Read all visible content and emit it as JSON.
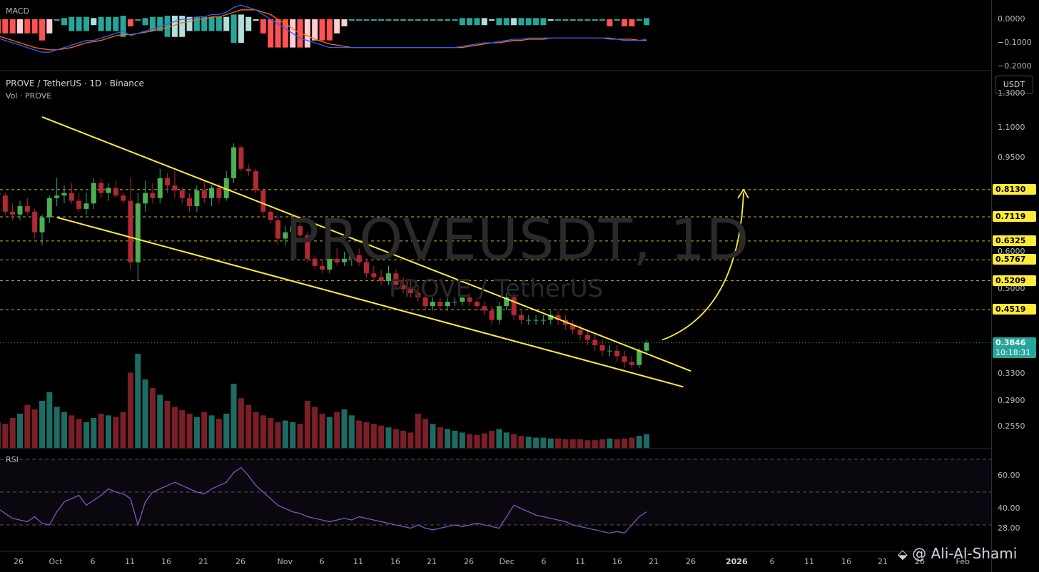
{
  "header": {
    "title": "PROVE / TetherUS · 1D · Binance",
    "vol_label": "Vol · PROVE",
    "watermark": "PROVEUSDT, 1D",
    "watermark_sub": "PROVE / TetherUS"
  },
  "panes": {
    "macd_label": "MACD",
    "rsi_label": "RSI"
  },
  "currency_button": "USDT",
  "author": "@ Ali-Al-Shami",
  "price_axis": {
    "ticks": [
      "1.3000",
      "1.1000",
      "0.9500",
      "0.6000",
      "0.5000",
      "0.3300",
      "0.2900",
      "0.2550"
    ],
    "highlighted_levels": [
      "0.8130",
      "0.7119",
      "0.6325",
      "0.5767",
      "0.5209",
      "0.4519"
    ],
    "current_price": "0.3846",
    "countdown": "10:18:31"
  },
  "macd_axis": {
    "ticks": [
      "0.0000",
      "−0.1000",
      "−0.2000"
    ]
  },
  "rsi_axis": {
    "ticks": [
      "60.00",
      "40.00",
      "28.00"
    ]
  },
  "time_axis": {
    "labels": [
      "26",
      "Oct",
      "6",
      "11",
      "16",
      "21",
      "26",
      "Nov",
      "6",
      "11",
      "16",
      "21",
      "26",
      "Dec",
      "6",
      "11",
      "16",
      "21",
      "26",
      "2026",
      "6",
      "11",
      "16",
      "21",
      "26",
      "Feb"
    ],
    "bold": [
      "2026"
    ]
  },
  "colors": {
    "up": "#26a69a",
    "down": "#b22833",
    "pattern": "#ffeb3b",
    "macd": "#2962ff",
    "signal": "#ff6d00",
    "rsi": "#7e57c2",
    "levels": "#ffeb3b",
    "current": "#26a69a"
  },
  "chart_data": [
    {
      "type": "candlestick",
      "title": "PROVE / TetherUS · 1D · Binance",
      "scale": "log",
      "ylim": [
        0.23,
        1.45
      ],
      "x": [
        "Sep 23",
        "Sep 24",
        "Sep 25",
        "Sep 26",
        "Sep 27",
        "Sep 28",
        "Sep 29",
        "Sep 30",
        "Oct 1",
        "Oct 2",
        "Oct 3",
        "Oct 4",
        "Oct 5",
        "Oct 6",
        "Oct 7",
        "Oct 8",
        "Oct 9",
        "Oct 10",
        "Oct 11",
        "Oct 12",
        "Oct 13",
        "Oct 14",
        "Oct 15",
        "Oct 16",
        "Oct 17",
        "Oct 18",
        "Oct 19",
        "Oct 20",
        "Oct 21",
        "Oct 22",
        "Oct 23",
        "Oct 24",
        "Oct 25",
        "Oct 26",
        "Oct 27",
        "Oct 28",
        "Oct 29",
        "Oct 30",
        "Oct 31",
        "Nov 1",
        "Nov 2",
        "Nov 3",
        "Nov 4",
        "Nov 5",
        "Nov 6",
        "Nov 7",
        "Nov 8",
        "Nov 9",
        "Nov 10",
        "Nov 11",
        "Nov 12",
        "Nov 13",
        "Nov 14",
        "Nov 15",
        "Nov 16",
        "Nov 17",
        "Nov 18",
        "Nov 19",
        "Nov 20",
        "Nov 21",
        "Nov 22",
        "Nov 23",
        "Nov 24",
        "Nov 25",
        "Nov 26",
        "Nov 27",
        "Nov 28",
        "Nov 29",
        "Nov 30",
        "Dec 1",
        "Dec 2",
        "Dec 3",
        "Dec 4",
        "Dec 5",
        "Dec 6",
        "Dec 7",
        "Dec 8",
        "Dec 9",
        "Dec 10",
        "Dec 11",
        "Dec 12",
        "Dec 13",
        "Dec 14",
        "Dec 15",
        "Dec 16",
        "Dec 17",
        "Dec 18",
        "Dec 19",
        "Dec 20"
      ],
      "ohlc": [
        [
          0.8,
          0.82,
          0.78,
          0.79
        ],
        [
          0.79,
          0.8,
          0.72,
          0.73
        ],
        [
          0.73,
          0.76,
          0.7,
          0.72
        ],
        [
          0.72,
          0.77,
          0.7,
          0.75
        ],
        [
          0.75,
          0.78,
          0.72,
          0.73
        ],
        [
          0.73,
          0.74,
          0.64,
          0.66
        ],
        [
          0.66,
          0.72,
          0.62,
          0.71
        ],
        [
          0.71,
          0.79,
          0.69,
          0.78
        ],
        [
          0.78,
          0.86,
          0.75,
          0.79
        ],
        [
          0.79,
          0.83,
          0.76,
          0.8
        ],
        [
          0.8,
          0.84,
          0.76,
          0.77
        ],
        [
          0.77,
          0.8,
          0.73,
          0.74
        ],
        [
          0.74,
          0.8,
          0.72,
          0.76
        ],
        [
          0.76,
          0.86,
          0.74,
          0.84
        ],
        [
          0.84,
          0.86,
          0.78,
          0.8
        ],
        [
          0.8,
          0.84,
          0.77,
          0.82
        ],
        [
          0.82,
          0.85,
          0.78,
          0.79
        ],
        [
          0.79,
          0.8,
          0.76,
          0.77
        ],
        [
          0.77,
          0.86,
          0.55,
          0.57
        ],
        [
          0.57,
          0.8,
          0.52,
          0.76
        ],
        [
          0.76,
          0.85,
          0.73,
          0.8
        ],
        [
          0.8,
          0.84,
          0.76,
          0.78
        ],
        [
          0.78,
          0.9,
          0.76,
          0.86
        ],
        [
          0.86,
          0.88,
          0.8,
          0.83
        ],
        [
          0.83,
          0.89,
          0.78,
          0.81
        ],
        [
          0.81,
          0.82,
          0.76,
          0.78
        ],
        [
          0.78,
          0.8,
          0.73,
          0.75
        ],
        [
          0.75,
          0.83,
          0.73,
          0.81
        ],
        [
          0.81,
          0.85,
          0.76,
          0.78
        ],
        [
          0.78,
          0.83,
          0.75,
          0.82
        ],
        [
          0.82,
          0.84,
          0.76,
          0.78
        ],
        [
          0.78,
          0.89,
          0.77,
          0.86
        ],
        [
          0.86,
          1.02,
          0.84,
          1.0
        ],
        [
          1.0,
          1.01,
          0.89,
          0.9
        ],
        [
          0.9,
          0.92,
          0.87,
          0.89
        ],
        [
          0.89,
          0.9,
          0.8,
          0.81
        ],
        [
          0.81,
          0.82,
          0.72,
          0.73
        ],
        [
          0.73,
          0.74,
          0.69,
          0.7
        ],
        [
          0.7,
          0.72,
          0.62,
          0.64
        ],
        [
          0.64,
          0.68,
          0.62,
          0.66
        ],
        [
          0.66,
          0.69,
          0.65,
          0.68
        ],
        [
          0.68,
          0.69,
          0.64,
          0.65
        ],
        [
          0.65,
          0.66,
          0.57,
          0.58
        ],
        [
          0.58,
          0.59,
          0.55,
          0.56
        ],
        [
          0.56,
          0.58,
          0.54,
          0.55
        ],
        [
          0.55,
          0.6,
          0.54,
          0.58
        ],
        [
          0.58,
          0.61,
          0.56,
          0.57
        ],
        [
          0.57,
          0.6,
          0.56,
          0.58
        ],
        [
          0.58,
          0.6,
          0.56,
          0.59
        ],
        [
          0.59,
          0.61,
          0.56,
          0.57
        ],
        [
          0.57,
          0.58,
          0.53,
          0.54
        ],
        [
          0.54,
          0.56,
          0.52,
          0.53
        ],
        [
          0.53,
          0.55,
          0.51,
          0.52
        ],
        [
          0.52,
          0.56,
          0.51,
          0.54
        ],
        [
          0.54,
          0.55,
          0.5,
          0.51
        ],
        [
          0.51,
          0.53,
          0.49,
          0.5
        ],
        [
          0.5,
          0.52,
          0.48,
          0.49
        ],
        [
          0.49,
          0.51,
          0.47,
          0.48
        ],
        [
          0.48,
          0.49,
          0.45,
          0.46
        ],
        [
          0.46,
          0.48,
          0.45,
          0.47
        ],
        [
          0.47,
          0.48,
          0.45,
          0.46
        ],
        [
          0.46,
          0.48,
          0.45,
          0.47
        ],
        [
          0.47,
          0.48,
          0.46,
          0.47
        ],
        [
          0.47,
          0.48,
          0.46,
          0.48
        ],
        [
          0.48,
          0.49,
          0.46,
          0.47
        ],
        [
          0.47,
          0.48,
          0.45,
          0.46
        ],
        [
          0.46,
          0.47,
          0.44,
          0.45
        ],
        [
          0.45,
          0.46,
          0.42,
          0.43
        ],
        [
          0.43,
          0.47,
          0.42,
          0.46
        ],
        [
          0.46,
          0.49,
          0.45,
          0.48
        ],
        [
          0.48,
          0.49,
          0.43,
          0.44
        ],
        [
          0.44,
          0.45,
          0.42,
          0.43
        ],
        [
          0.43,
          0.44,
          0.42,
          0.43
        ],
        [
          0.43,
          0.44,
          0.42,
          0.43
        ],
        [
          0.43,
          0.44,
          0.42,
          0.43
        ],
        [
          0.43,
          0.45,
          0.42,
          0.44
        ],
        [
          0.44,
          0.45,
          0.42,
          0.43
        ],
        [
          0.43,
          0.44,
          0.41,
          0.42
        ],
        [
          0.42,
          0.43,
          0.4,
          0.41
        ],
        [
          0.41,
          0.42,
          0.39,
          0.4
        ],
        [
          0.4,
          0.41,
          0.38,
          0.39
        ],
        [
          0.39,
          0.4,
          0.37,
          0.38
        ],
        [
          0.38,
          0.39,
          0.36,
          0.37
        ],
        [
          0.37,
          0.38,
          0.36,
          0.37
        ],
        [
          0.37,
          0.38,
          0.35,
          0.36
        ],
        [
          0.36,
          0.37,
          0.34,
          0.35
        ],
        [
          0.35,
          0.36,
          0.34,
          0.345
        ],
        [
          0.345,
          0.375,
          0.34,
          0.37
        ],
        [
          0.37,
          0.39,
          0.365,
          0.3846
        ]
      ],
      "volume": [
        30,
        28,
        35,
        40,
        50,
        45,
        55,
        65,
        48,
        42,
        38,
        34,
        30,
        35,
        40,
        38,
        36,
        42,
        88,
        110,
        80,
        70,
        62,
        55,
        48,
        44,
        40,
        36,
        42,
        38,
        34,
        40,
        75,
        58,
        50,
        42,
        38,
        35,
        30,
        32,
        30,
        28,
        55,
        48,
        40,
        36,
        42,
        45,
        38,
        32,
        30,
        28,
        26,
        24,
        22,
        20,
        18,
        40,
        34,
        28,
        24,
        22,
        20,
        18,
        16,
        15,
        17,
        20,
        22,
        18,
        16,
        14,
        13,
        12,
        12,
        11,
        11,
        10,
        10,
        10,
        9,
        9,
        10,
        11,
        10,
        11,
        12,
        14,
        16
      ],
      "trendlines": {
        "upper": [
          [
            "Sep 29",
            1.16
          ],
          [
            "Dec 26",
            0.335
          ]
        ],
        "lower": [
          [
            "Oct 1",
            0.71
          ],
          [
            "Dec 25",
            0.31
          ]
        ]
      },
      "levels": [
        0.813,
        0.7119,
        0.6325,
        0.5767,
        0.5209,
        0.4519
      ],
      "current": 0.3846
    },
    {
      "type": "line",
      "title": "MACD",
      "ylim": [
        -0.21,
        0.05
      ],
      "series": [
        {
          "values": [
            -0.08,
            -0.09,
            -0.1,
            -0.11,
            -0.12,
            -0.13,
            -0.14,
            -0.14,
            -0.13,
            -0.12,
            -0.11,
            -0.1,
            -0.09,
            -0.09,
            -0.08,
            -0.07,
            -0.06,
            -0.05,
            -0.07,
            -0.06,
            -0.05,
            -0.04,
            -0.03,
            -0.02,
            -0.01,
            0.0,
            0.0,
            0.01,
            0.01,
            0.02,
            0.02,
            0.03,
            0.05,
            0.06,
            0.05,
            0.04,
            0.02,
            0.0,
            -0.02,
            -0.04,
            -0.06,
            -0.08,
            -0.09,
            -0.1,
            -0.11,
            -0.12,
            -0.12,
            -0.12,
            -0.12,
            -0.12,
            -0.12,
            -0.12,
            -0.12,
            -0.12,
            -0.12,
            -0.12,
            -0.12,
            -0.12,
            -0.12,
            -0.12,
            -0.12,
            -0.12,
            -0.12,
            -0.115,
            -0.11,
            -0.105,
            -0.1,
            -0.1,
            -0.095,
            -0.09,
            -0.085,
            -0.085,
            -0.08,
            -0.08,
            -0.08,
            -0.08,
            -0.08,
            -0.08,
            -0.08,
            -0.08,
            -0.08,
            -0.08,
            -0.08,
            -0.085,
            -0.085,
            -0.09,
            -0.09,
            -0.09,
            -0.085
          ]
        },
        {
          "values": [
            -0.07,
            -0.08,
            -0.09,
            -0.1,
            -0.11,
            -0.12,
            -0.125,
            -0.13,
            -0.13,
            -0.125,
            -0.12,
            -0.11,
            -0.1,
            -0.095,
            -0.09,
            -0.08,
            -0.07,
            -0.065,
            -0.065,
            -0.06,
            -0.055,
            -0.05,
            -0.04,
            -0.035,
            -0.025,
            -0.015,
            -0.01,
            0.0,
            0.0,
            0.01,
            0.01,
            0.02,
            0.03,
            0.04,
            0.04,
            0.04,
            0.03,
            0.02,
            0.0,
            -0.02,
            -0.04,
            -0.06,
            -0.07,
            -0.085,
            -0.095,
            -0.105,
            -0.11,
            -0.115,
            -0.12,
            -0.12,
            -0.12,
            -0.12,
            -0.12,
            -0.12,
            -0.12,
            -0.12,
            -0.12,
            -0.12,
            -0.12,
            -0.12,
            -0.12,
            -0.12,
            -0.12,
            -0.12,
            -0.115,
            -0.11,
            -0.105,
            -0.1,
            -0.1,
            -0.095,
            -0.09,
            -0.09,
            -0.085,
            -0.085,
            -0.085,
            -0.08,
            -0.08,
            -0.08,
            -0.08,
            -0.08,
            -0.08,
            -0.08,
            -0.08,
            -0.08,
            -0.085,
            -0.085,
            -0.085,
            -0.09,
            -0.09
          ]
        }
      ]
    },
    {
      "type": "line",
      "title": "RSI",
      "ylim": [
        20,
        72
      ],
      "bands": [
        30,
        50,
        70
      ],
      "values": [
        40,
        37,
        34,
        33,
        32,
        35,
        31,
        30,
        38,
        44,
        46,
        48,
        42,
        45,
        48,
        52,
        50,
        49,
        46,
        30,
        44,
        50,
        52,
        54,
        56,
        54,
        52,
        50,
        49,
        52,
        54,
        56,
        62,
        65,
        60,
        54,
        50,
        46,
        42,
        40,
        38,
        37,
        35,
        34,
        33,
        32,
        33,
        34,
        33,
        35,
        34,
        33,
        32,
        31,
        30,
        29,
        28,
        30,
        28,
        27,
        28,
        29,
        30,
        29,
        30,
        31,
        30,
        29,
        28,
        35,
        42,
        40,
        38,
        36,
        35,
        34,
        33,
        32,
        30,
        29,
        28,
        27,
        26,
        25,
        26,
        25,
        30,
        35,
        38
      ]
    }
  ]
}
